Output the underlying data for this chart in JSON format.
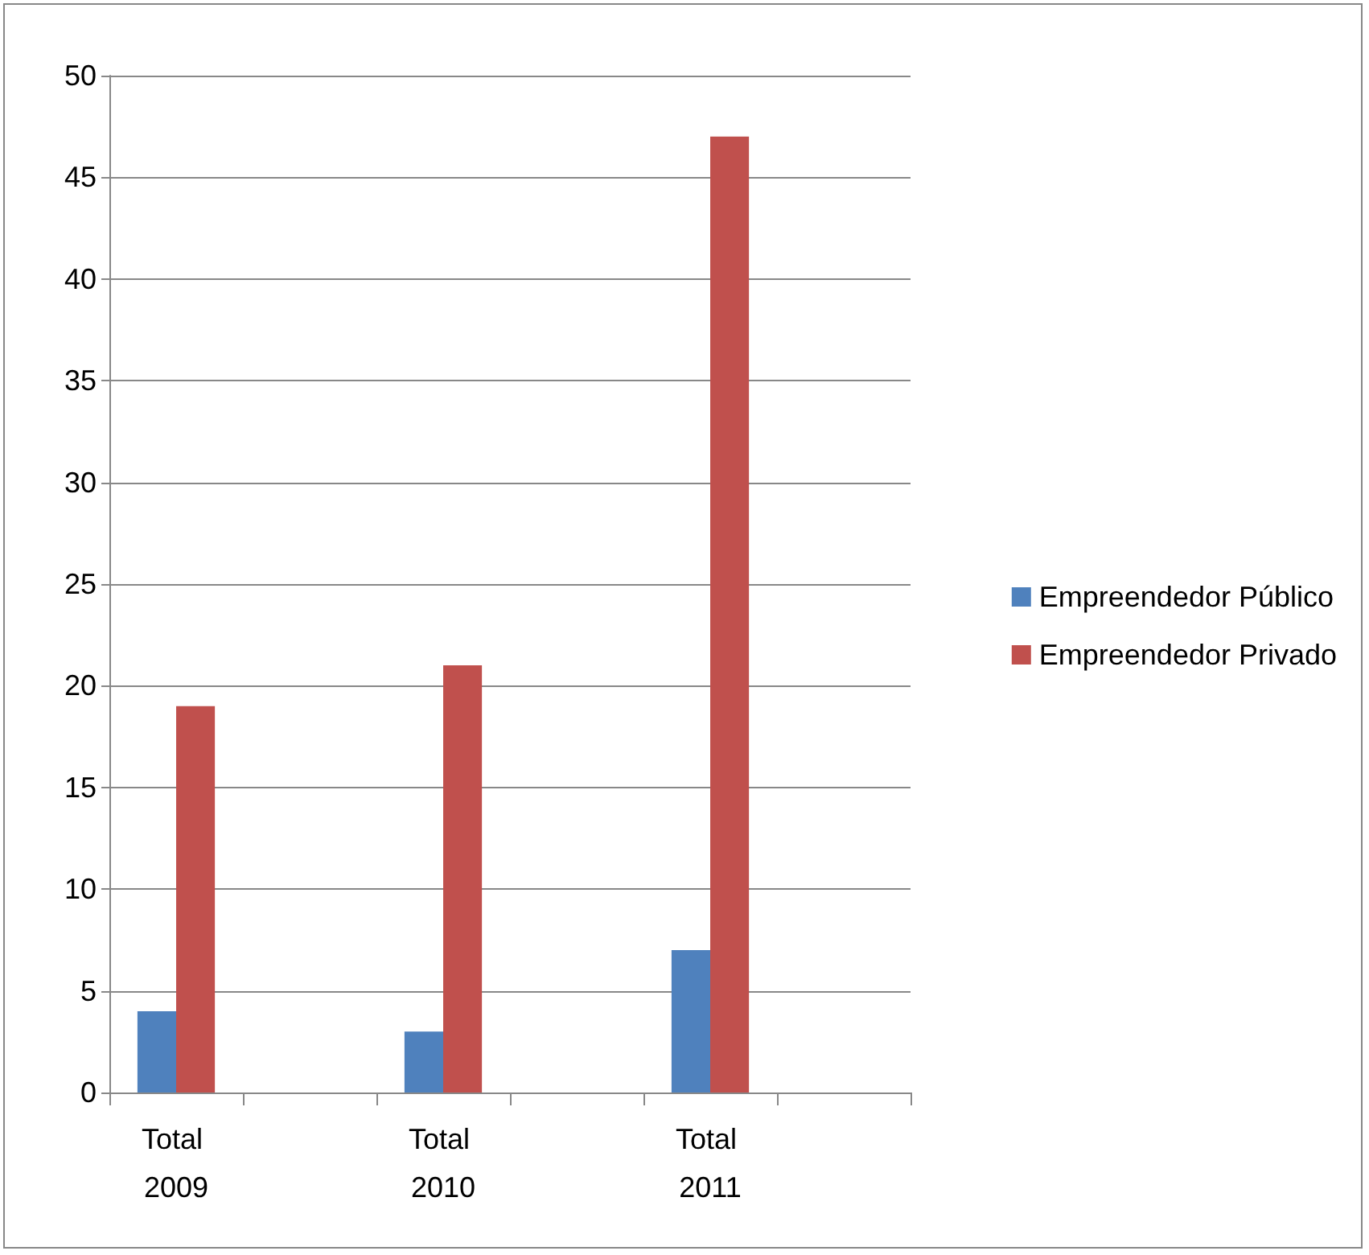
{
  "chart_data": {
    "type": "bar",
    "categories": [
      "Total 2009",
      null,
      "Total 2010",
      null,
      "Total 2011",
      null
    ],
    "series": [
      {
        "name": "Empreendedor Público",
        "color": "#4f81bd",
        "values": [
          4,
          null,
          3,
          null,
          7,
          null
        ]
      },
      {
        "name": "Empreendedor Privado",
        "color": "#c0504d",
        "values": [
          19,
          null,
          21,
          null,
          47,
          null
        ]
      }
    ],
    "ylim": [
      0,
      50
    ],
    "yticks": [
      0,
      5,
      10,
      15,
      20,
      25,
      30,
      35,
      40,
      45,
      50
    ],
    "grid": "y",
    "legend": "right"
  }
}
